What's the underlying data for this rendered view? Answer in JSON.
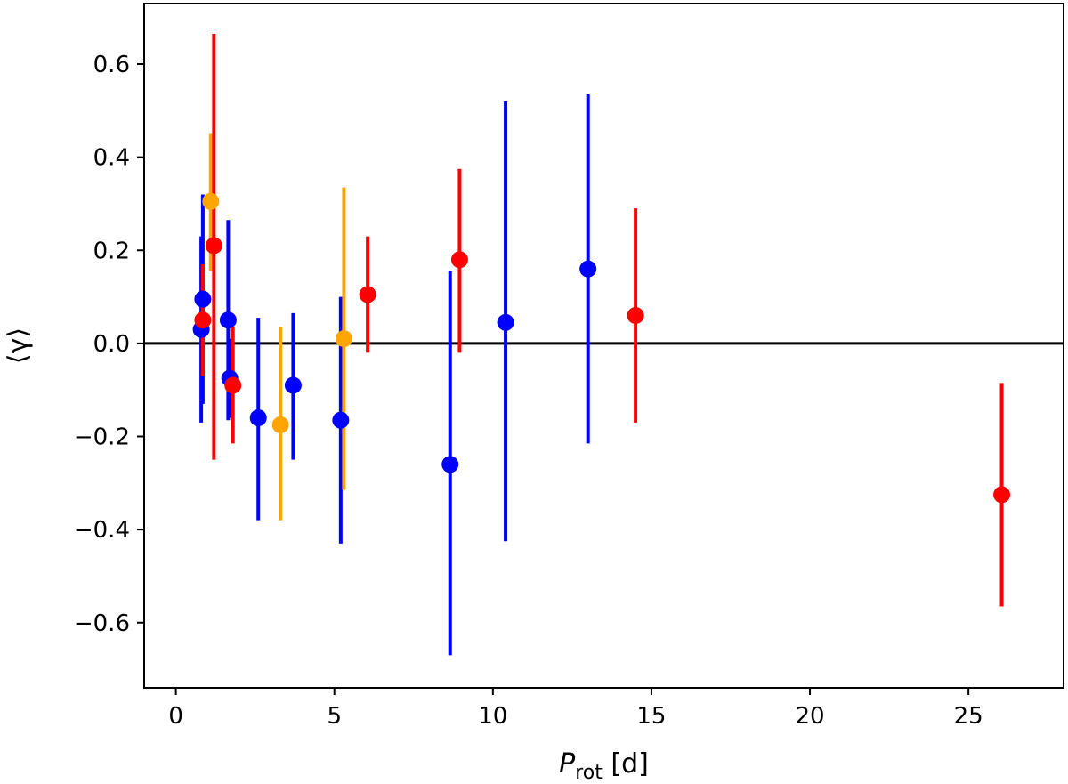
{
  "chart_data": {
    "type": "scatter",
    "title": "",
    "xlabel": {
      "main": "P",
      "sub": "rot",
      "unit": " [d]"
    },
    "ylabel": "⟨γ⟩",
    "xlim": [
      -1,
      28
    ],
    "ylim": [
      -0.74,
      0.73
    ],
    "xticks": [
      0,
      5,
      10,
      15,
      20,
      25
    ],
    "yticks": [
      -0.6,
      -0.4,
      -0.2,
      0.0,
      0.2,
      0.4,
      0.6
    ],
    "xtick_labels": [
      "0",
      "5",
      "10",
      "15",
      "20",
      "25"
    ],
    "ytick_labels": [
      "−0.6",
      "−0.4",
      "−0.2",
      "0.0",
      "0.2",
      "0.4",
      "0.6"
    ],
    "hline": 0.0,
    "grid": false,
    "series": [
      {
        "color": "#0000ff",
        "points": [
          {
            "x": 0.8,
            "y": 0.03,
            "lo": -0.17,
            "hi": 0.23
          },
          {
            "x": 0.85,
            "y": 0.095,
            "lo": -0.13,
            "hi": 0.32
          },
          {
            "x": 1.65,
            "y": 0.05,
            "lo": -0.165,
            "hi": 0.265
          },
          {
            "x": 1.7,
            "y": -0.075,
            "lo": -0.16,
            "hi": 0.01
          },
          {
            "x": 2.6,
            "y": -0.16,
            "lo": -0.38,
            "hi": 0.055
          },
          {
            "x": 3.7,
            "y": -0.09,
            "lo": -0.25,
            "hi": 0.065
          },
          {
            "x": 5.2,
            "y": -0.165,
            "lo": -0.43,
            "hi": 0.1
          },
          {
            "x": 8.65,
            "y": -0.26,
            "lo": -0.67,
            "hi": 0.155
          },
          {
            "x": 10.4,
            "y": 0.045,
            "lo": -0.425,
            "hi": 0.52
          },
          {
            "x": 13.0,
            "y": 0.16,
            "lo": -0.215,
            "hi": 0.535
          }
        ]
      },
      {
        "color": "#ffa500",
        "points": [
          {
            "x": 1.1,
            "y": 0.305,
            "lo": 0.155,
            "hi": 0.45
          },
          {
            "x": 3.3,
            "y": -0.175,
            "lo": -0.38,
            "hi": 0.035
          },
          {
            "x": 5.3,
            "y": 0.01,
            "lo": -0.315,
            "hi": 0.335
          }
        ]
      },
      {
        "color": "#ff0000",
        "points": [
          {
            "x": 0.85,
            "y": 0.05,
            "lo": -0.07,
            "hi": 0.17
          },
          {
            "x": 1.2,
            "y": 0.21,
            "lo": -0.25,
            "hi": 0.665
          },
          {
            "x": 1.8,
            "y": -0.09,
            "lo": -0.215,
            "hi": 0.035
          },
          {
            "x": 6.05,
            "y": 0.105,
            "lo": -0.02,
            "hi": 0.23
          },
          {
            "x": 8.95,
            "y": 0.18,
            "lo": -0.02,
            "hi": 0.375
          },
          {
            "x": 14.5,
            "y": 0.06,
            "lo": -0.17,
            "hi": 0.29
          },
          {
            "x": 26.05,
            "y": -0.325,
            "lo": -0.565,
            "hi": -0.085
          }
        ]
      }
    ]
  }
}
